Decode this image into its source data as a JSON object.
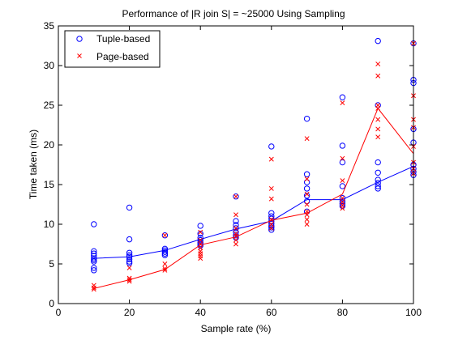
{
  "chart_data": {
    "type": "scatter",
    "title": "Performance of |R join S| = ~25000 Using Sampling",
    "xlabel": "Sample rate (%)",
    "ylabel": "Time taken (ms)",
    "xlim": [
      0,
      100
    ],
    "ylim": [
      0,
      35
    ],
    "xticks": [
      0,
      20,
      40,
      60,
      80,
      100
    ],
    "yticks": [
      0,
      5,
      10,
      15,
      20,
      25,
      30,
      35
    ],
    "legend": "top-left",
    "series": [
      {
        "name": "Tuple-based",
        "color": "#0000ff",
        "marker": "circle",
        "points": [
          [
            10,
            10.0
          ],
          [
            10,
            6.6
          ],
          [
            10,
            6.3
          ],
          [
            10,
            6.0
          ],
          [
            10,
            5.7
          ],
          [
            10,
            5.5
          ],
          [
            10,
            5.3
          ],
          [
            10,
            4.5
          ],
          [
            10,
            4.2
          ],
          [
            20,
            12.1
          ],
          [
            20,
            8.1
          ],
          [
            20,
            6.4
          ],
          [
            20,
            6.1
          ],
          [
            20,
            5.9
          ],
          [
            20,
            5.6
          ],
          [
            20,
            5.3
          ],
          [
            20,
            5.1
          ],
          [
            30,
            8.6
          ],
          [
            30,
            6.9
          ],
          [
            30,
            6.7
          ],
          [
            30,
            6.5
          ],
          [
            30,
            6.3
          ],
          [
            30,
            6.1
          ],
          [
            40,
            9.8
          ],
          [
            40,
            8.8
          ],
          [
            40,
            8.3
          ],
          [
            40,
            8.0
          ],
          [
            40,
            7.7
          ],
          [
            40,
            7.5
          ],
          [
            40,
            7.3
          ],
          [
            50,
            13.5
          ],
          [
            50,
            10.4
          ],
          [
            50,
            9.9
          ],
          [
            50,
            9.5
          ],
          [
            50,
            9.0
          ],
          [
            50,
            8.6
          ],
          [
            50,
            8.3
          ],
          [
            60,
            19.8
          ],
          [
            60,
            11.4
          ],
          [
            60,
            11.0
          ],
          [
            60,
            10.7
          ],
          [
            60,
            10.4
          ],
          [
            60,
            10.1
          ],
          [
            60,
            9.8
          ],
          [
            60,
            9.6
          ],
          [
            60,
            9.3
          ],
          [
            70,
            23.3
          ],
          [
            70,
            16.3
          ],
          [
            70,
            15.3
          ],
          [
            70,
            14.5
          ],
          [
            70,
            13.6
          ],
          [
            70,
            12.9
          ],
          [
            70,
            11.6
          ],
          [
            80,
            26.0
          ],
          [
            80,
            19.9
          ],
          [
            80,
            17.8
          ],
          [
            80,
            14.8
          ],
          [
            80,
            13.3
          ],
          [
            80,
            12.9
          ],
          [
            80,
            12.6
          ],
          [
            80,
            12.3
          ],
          [
            90,
            33.1
          ],
          [
            90,
            25.0
          ],
          [
            90,
            17.8
          ],
          [
            90,
            16.5
          ],
          [
            90,
            15.6
          ],
          [
            90,
            15.2
          ],
          [
            90,
            14.8
          ],
          [
            90,
            14.5
          ],
          [
            100,
            32.8
          ],
          [
            100,
            28.2
          ],
          [
            100,
            27.8
          ],
          [
            100,
            22.0
          ],
          [
            100,
            20.3
          ],
          [
            100,
            17.5
          ],
          [
            100,
            17.0
          ],
          [
            100,
            16.6
          ],
          [
            100,
            16.2
          ]
        ],
        "line": [
          [
            10,
            5.7
          ],
          [
            20,
            5.9
          ],
          [
            30,
            6.7
          ],
          [
            40,
            8.1
          ],
          [
            50,
            9.4
          ],
          [
            60,
            10.4
          ],
          [
            70,
            13.1
          ],
          [
            80,
            13.1
          ],
          [
            90,
            15.3
          ],
          [
            100,
            17.3
          ]
        ]
      },
      {
        "name": "Page-based",
        "color": "#ff0000",
        "marker": "x",
        "points": [
          [
            10,
            2.3
          ],
          [
            10,
            2.0
          ],
          [
            10,
            1.8
          ],
          [
            20,
            4.5
          ],
          [
            20,
            3.2
          ],
          [
            20,
            3.0
          ],
          [
            20,
            2.8
          ],
          [
            30,
            8.6
          ],
          [
            30,
            5.0
          ],
          [
            30,
            4.4
          ],
          [
            30,
            4.2
          ],
          [
            40,
            9.0
          ],
          [
            40,
            8.0
          ],
          [
            40,
            7.5
          ],
          [
            40,
            7.0
          ],
          [
            40,
            6.6
          ],
          [
            40,
            6.3
          ],
          [
            40,
            6.0
          ],
          [
            40,
            5.7
          ],
          [
            50,
            13.5
          ],
          [
            50,
            11.2
          ],
          [
            50,
            9.5
          ],
          [
            50,
            8.8
          ],
          [
            50,
            8.5
          ],
          [
            50,
            8.0
          ],
          [
            50,
            7.5
          ],
          [
            60,
            18.2
          ],
          [
            60,
            14.5
          ],
          [
            60,
            13.2
          ],
          [
            60,
            10.6
          ],
          [
            60,
            10.0
          ],
          [
            60,
            9.5
          ],
          [
            70,
            20.8
          ],
          [
            70,
            15.7
          ],
          [
            70,
            13.8
          ],
          [
            70,
            12.5
          ],
          [
            70,
            11.6
          ],
          [
            70,
            11.2
          ],
          [
            70,
            10.6
          ],
          [
            70,
            10.0
          ],
          [
            80,
            25.3
          ],
          [
            80,
            18.3
          ],
          [
            80,
            15.5
          ],
          [
            80,
            13.3
          ],
          [
            80,
            12.8
          ],
          [
            80,
            12.4
          ],
          [
            80,
            12.0
          ],
          [
            90,
            30.2
          ],
          [
            90,
            28.7
          ],
          [
            90,
            25.0
          ],
          [
            90,
            24.6
          ],
          [
            90,
            23.2
          ],
          [
            90,
            22.0
          ],
          [
            90,
            21.0
          ],
          [
            100,
            32.8
          ],
          [
            100,
            26.2
          ],
          [
            100,
            23.2
          ],
          [
            100,
            22.2
          ],
          [
            100,
            19.8
          ],
          [
            100,
            17.8
          ],
          [
            100,
            17.0
          ],
          [
            100,
            16.4
          ]
        ],
        "line": [
          [
            10,
            1.9
          ],
          [
            20,
            3.0
          ],
          [
            30,
            4.3
          ],
          [
            40,
            7.4
          ],
          [
            50,
            8.4
          ],
          [
            60,
            10.5
          ],
          [
            70,
            11.4
          ],
          [
            80,
            13.8
          ],
          [
            90,
            24.6
          ],
          [
            100,
            18.9
          ]
        ]
      }
    ]
  }
}
